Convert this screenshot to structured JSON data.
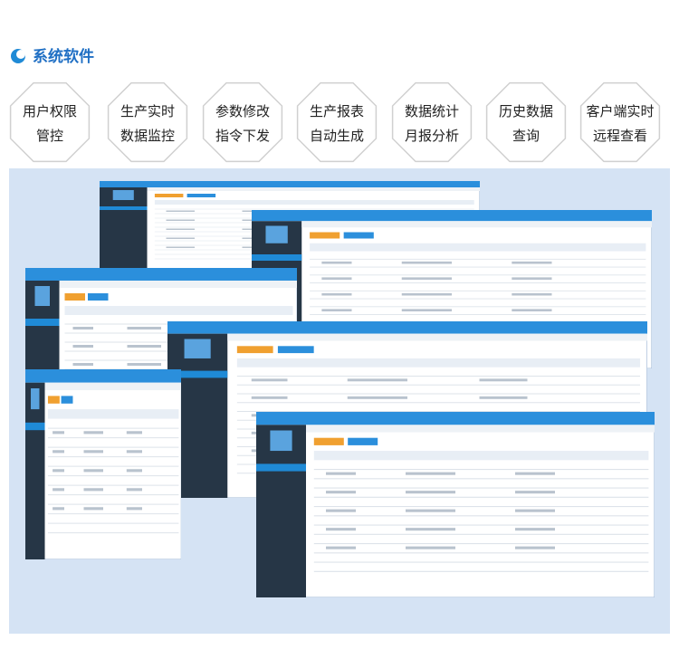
{
  "header": {
    "title": "系统软件"
  },
  "features": [
    {
      "lines": [
        "用户权限",
        "管控"
      ]
    },
    {
      "lines": [
        "生产实时",
        "数据监控"
      ]
    },
    {
      "lines": [
        "参数修改",
        "指令下发"
      ]
    },
    {
      "lines": [
        "生产报表",
        "自动生成"
      ]
    },
    {
      "lines": [
        "数据统计",
        "月报分析"
      ]
    },
    {
      "lines": [
        "历史数据",
        "查询"
      ]
    },
    {
      "lines": [
        "客户端实时",
        "远程查看"
      ]
    }
  ]
}
